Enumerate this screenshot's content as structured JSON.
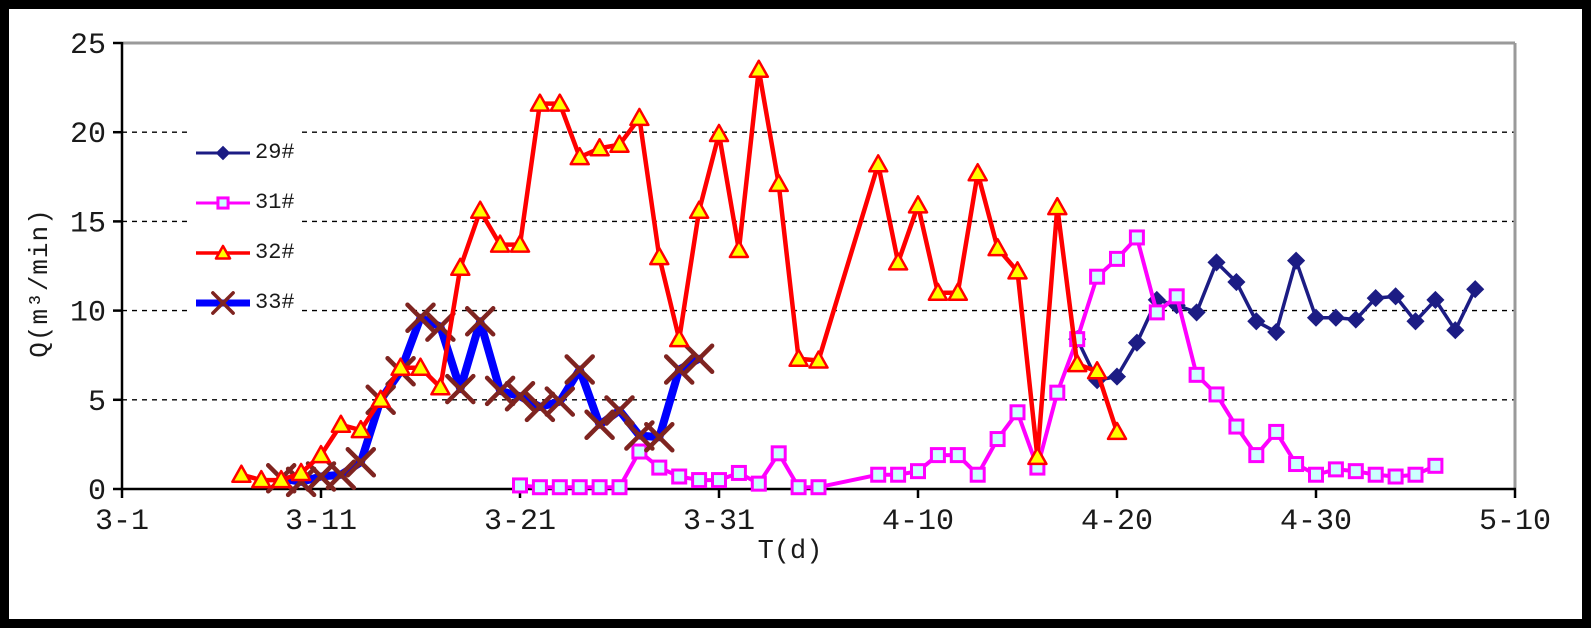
{
  "figure": {
    "background": "#FFFFFF",
    "outer_border_color": "#000000",
    "plot_border_gray": "#9a9a9a",
    "axis_color": "#000000",
    "gridline_color": "#000000"
  },
  "chart_data": {
    "type": "line",
    "title": "",
    "xlabel": "T(d)",
    "ylabel": "Q(m³/min)",
    "ylim": [
      0,
      25
    ],
    "y_ticks": [
      0,
      5,
      10,
      15,
      20,
      25
    ],
    "grid_y_values": [
      5,
      10,
      15,
      20
    ],
    "x_ticks": [
      "3-1",
      "3-11",
      "3-21",
      "3-31",
      "4-10",
      "4-20",
      "4-30",
      "5-10"
    ],
    "x_range_days": [
      "3-1",
      "5-10"
    ],
    "grid": "horizontal-dashed",
    "legend_position": "upper-left-inside",
    "series": [
      {
        "name": "29#",
        "color": "#1c1c84",
        "marker": "diamond",
        "marker_fill": "#1c1c84",
        "marker_stroke": "#1c1c84",
        "line_width": 3.5,
        "points": [
          [
            "4-18",
            8.4
          ],
          [
            "4-19",
            6.1
          ],
          [
            "4-20",
            6.3
          ],
          [
            "4-21",
            8.2
          ],
          [
            "4-22",
            10.6
          ],
          [
            "4-23",
            10.3
          ],
          [
            "4-24",
            9.9
          ],
          [
            "4-25",
            12.7
          ],
          [
            "4-26",
            11.6
          ],
          [
            "4-27",
            9.4
          ],
          [
            "4-28",
            8.8
          ],
          [
            "4-29",
            12.8
          ],
          [
            "4-30",
            9.6
          ],
          [
            "5-1",
            9.6
          ],
          [
            "5-2",
            9.5
          ],
          [
            "5-3",
            10.7
          ],
          [
            "5-4",
            10.8
          ],
          [
            "5-5",
            9.4
          ],
          [
            "5-6",
            10.6
          ],
          [
            "5-7",
            8.9
          ],
          [
            "5-8",
            11.2
          ]
        ]
      },
      {
        "name": "31#",
        "color": "#ff00ff",
        "marker": "square",
        "marker_fill": "#ccffff",
        "marker_stroke": "#ff00ff",
        "line_width": 4,
        "points": [
          [
            "3-21",
            0.2
          ],
          [
            "3-22",
            0.1
          ],
          [
            "3-23",
            0.1
          ],
          [
            "3-24",
            0.1
          ],
          [
            "3-25",
            0.1
          ],
          [
            "3-26",
            0.1
          ],
          [
            "3-27",
            2.1
          ],
          [
            "3-28",
            1.2
          ],
          [
            "3-29",
            0.7
          ],
          [
            "3-30",
            0.5
          ],
          [
            "3-31",
            0.5
          ],
          [
            "4-1",
            0.9
          ],
          [
            "4-2",
            0.3
          ],
          [
            "4-3",
            2.0
          ],
          [
            "4-4",
            0.1
          ],
          [
            "4-5",
            0.1
          ],
          [
            "4-8",
            0.8
          ],
          [
            "4-9",
            0.8
          ],
          [
            "4-10",
            1.0
          ],
          [
            "4-11",
            1.9
          ],
          [
            "4-12",
            1.9
          ],
          [
            "4-13",
            0.8
          ],
          [
            "4-14",
            2.8
          ],
          [
            "4-15",
            4.3
          ],
          [
            "4-16",
            1.2
          ],
          [
            "4-17",
            5.4
          ],
          [
            "4-18",
            8.4
          ],
          [
            "4-19",
            11.9
          ],
          [
            "4-20",
            12.9
          ],
          [
            "4-21",
            14.1
          ],
          [
            "4-22",
            9.9
          ],
          [
            "4-23",
            10.8
          ],
          [
            "4-24",
            6.4
          ],
          [
            "4-25",
            5.3
          ],
          [
            "4-26",
            3.5
          ],
          [
            "4-27",
            1.9
          ],
          [
            "4-28",
            3.2
          ],
          [
            "4-29",
            1.4
          ],
          [
            "4-30",
            0.8
          ],
          [
            "5-1",
            1.1
          ],
          [
            "5-2",
            1.0
          ],
          [
            "5-3",
            0.8
          ],
          [
            "5-4",
            0.7
          ],
          [
            "5-5",
            0.8
          ],
          [
            "5-6",
            1.3
          ]
        ]
      },
      {
        "name": "32#",
        "color": "#ff0000",
        "marker": "triangle",
        "marker_fill": "#ffff00",
        "marker_stroke": "#ff0000",
        "line_width": 4.5,
        "points": [
          [
            "3-7",
            0.8
          ],
          [
            "3-8",
            0.5
          ],
          [
            "3-9",
            0.5
          ],
          [
            "3-10",
            0.9
          ],
          [
            "3-11",
            1.9
          ],
          [
            "3-12",
            3.6
          ],
          [
            "3-13",
            3.3
          ],
          [
            "3-14",
            5.0
          ],
          [
            "3-15",
            6.8
          ],
          [
            "3-16",
            6.8
          ],
          [
            "3-17",
            5.7
          ],
          [
            "3-18",
            12.4
          ],
          [
            "3-19",
            15.6
          ],
          [
            "3-20",
            13.7
          ],
          [
            "3-21",
            13.7
          ],
          [
            "3-22",
            21.6
          ],
          [
            "3-23",
            21.6
          ],
          [
            "3-24",
            18.6
          ],
          [
            "3-25",
            19.1
          ],
          [
            "3-26",
            19.3
          ],
          [
            "3-27",
            20.8
          ],
          [
            "3-28",
            13.0
          ],
          [
            "3-29",
            8.4
          ],
          [
            "3-30",
            15.6
          ],
          [
            "3-31",
            19.9
          ],
          [
            "4-1",
            13.4
          ],
          [
            "4-2",
            23.5
          ],
          [
            "4-3",
            17.1
          ],
          [
            "4-4",
            7.3
          ],
          [
            "4-5",
            7.2
          ],
          [
            "4-8",
            18.2
          ],
          [
            "4-9",
            12.7
          ],
          [
            "4-10",
            15.9
          ],
          [
            "4-11",
            11.0
          ],
          [
            "4-12",
            11.0
          ],
          [
            "4-13",
            17.7
          ],
          [
            "4-14",
            13.5
          ],
          [
            "4-15",
            12.2
          ],
          [
            "4-16",
            1.8
          ],
          [
            "4-17",
            15.8
          ],
          [
            "4-18",
            7.0
          ],
          [
            "4-19",
            6.6
          ],
          [
            "4-20",
            3.2
          ]
        ]
      },
      {
        "name": "33#",
        "color": "#0000ff",
        "marker": "x",
        "marker_fill": "none",
        "marker_stroke": "#7f2420",
        "line_width": 8,
        "points": [
          [
            "3-9",
            0.6
          ],
          [
            "3-10",
            0.4
          ],
          [
            "3-11",
            0.7
          ],
          [
            "3-12",
            0.8
          ],
          [
            "3-13",
            1.5
          ],
          [
            "3-14",
            5.0
          ],
          [
            "3-15",
            6.6
          ],
          [
            "3-16",
            9.6
          ],
          [
            "3-17",
            9.1
          ],
          [
            "3-18",
            5.6
          ],
          [
            "3-19",
            9.4
          ],
          [
            "3-20",
            5.5
          ],
          [
            "3-21",
            5.2
          ],
          [
            "3-22",
            4.6
          ],
          [
            "3-23",
            4.9
          ],
          [
            "3-24",
            6.7
          ],
          [
            "3-25",
            3.6
          ],
          [
            "3-26",
            4.4
          ],
          [
            "3-27",
            3.0
          ],
          [
            "3-28",
            2.9
          ],
          [
            "3-29",
            6.7
          ],
          [
            "3-30",
            7.3
          ]
        ]
      }
    ]
  }
}
